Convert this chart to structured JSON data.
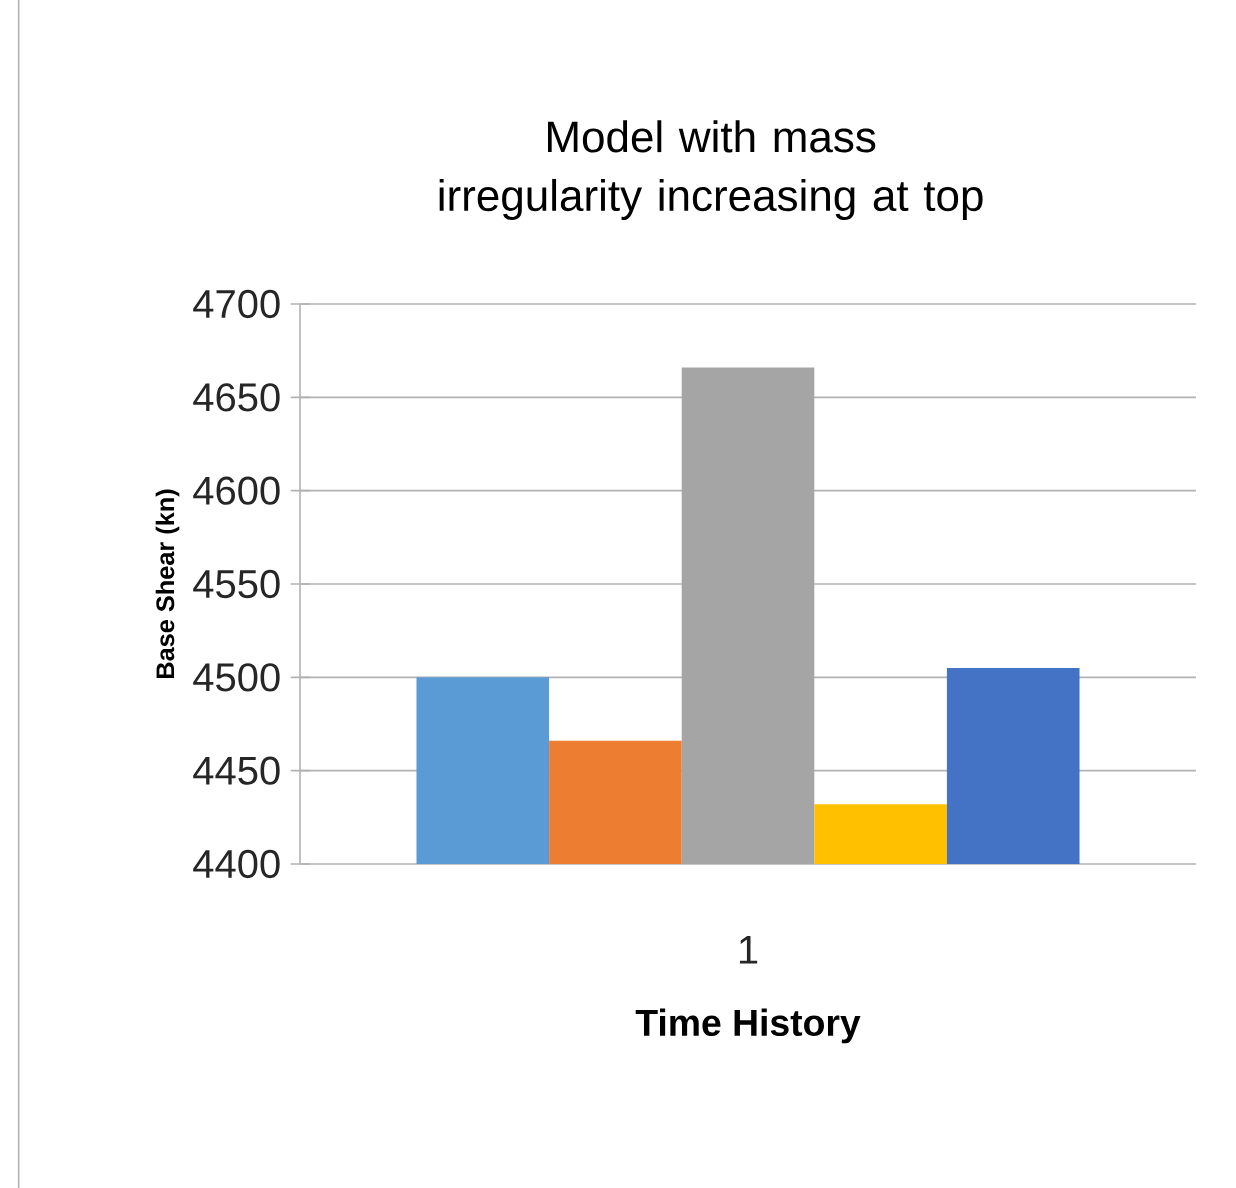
{
  "chart_data": {
    "type": "bar",
    "title": "Model with mass irregularity increasing at top",
    "xlabel": "Time History",
    "ylabel": "Base Shear (kn)",
    "categories": [
      "1"
    ],
    "series": [
      {
        "color": "#5b9bd5",
        "values": [
          4500
        ]
      },
      {
        "color": "#ed7d31",
        "values": [
          4466
        ]
      },
      {
        "color": "#a5a5a5",
        "values": [
          4666
        ]
      },
      {
        "color": "#ffc000",
        "values": [
          4432
        ]
      },
      {
        "color": "#4472c4",
        "values": [
          4505
        ]
      }
    ],
    "ylim": [
      4400,
      4700
    ],
    "yticks": [
      4400,
      4450,
      4500,
      4550,
      4600,
      4650,
      4700
    ],
    "grid": "y"
  }
}
